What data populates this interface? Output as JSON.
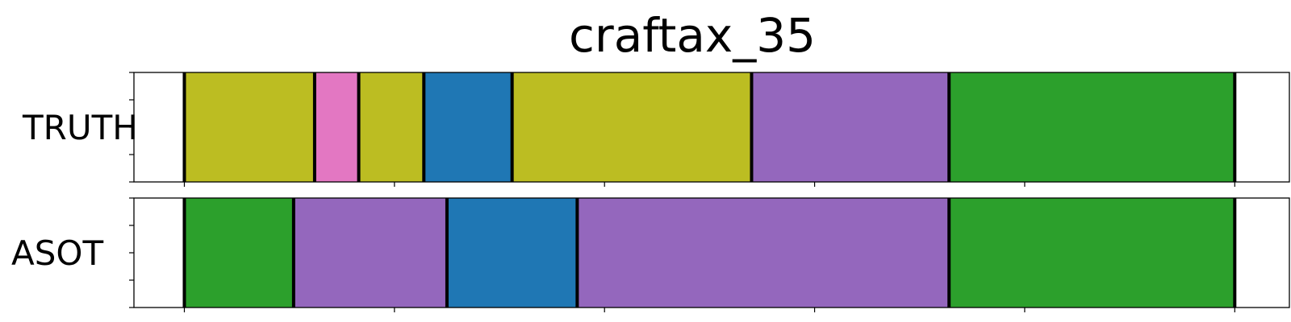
{
  "chart_data": {
    "type": "segmentation",
    "title": "craftax_35",
    "x_range": [
      -0.24,
      5.26
    ],
    "x_ticks": [
      0,
      1,
      2,
      3,
      4,
      5
    ],
    "rows": [
      {
        "label": "TRUTH",
        "segments": [
          {
            "start": 0.0,
            "end": 0.62,
            "color": "#bcbd22"
          },
          {
            "start": 0.62,
            "end": 0.83,
            "color": "#e377c2"
          },
          {
            "start": 0.83,
            "end": 1.14,
            "color": "#bcbd22"
          },
          {
            "start": 1.14,
            "end": 1.56,
            "color": "#1f77b4"
          },
          {
            "start": 1.56,
            "end": 2.7,
            "color": "#bcbd22"
          },
          {
            "start": 2.7,
            "end": 3.64,
            "color": "#9467bd"
          },
          {
            "start": 3.64,
            "end": 5.0,
            "color": "#2ca02c"
          }
        ]
      },
      {
        "label": "ASOT",
        "segments": [
          {
            "start": 0.0,
            "end": 0.52,
            "color": "#2ca02c"
          },
          {
            "start": 0.52,
            "end": 1.25,
            "color": "#9467bd"
          },
          {
            "start": 1.25,
            "end": 1.87,
            "color": "#1f77b4"
          },
          {
            "start": 1.87,
            "end": 3.64,
            "color": "#9467bd"
          },
          {
            "start": 3.64,
            "end": 5.0,
            "color": "#2ca02c"
          }
        ]
      }
    ]
  }
}
